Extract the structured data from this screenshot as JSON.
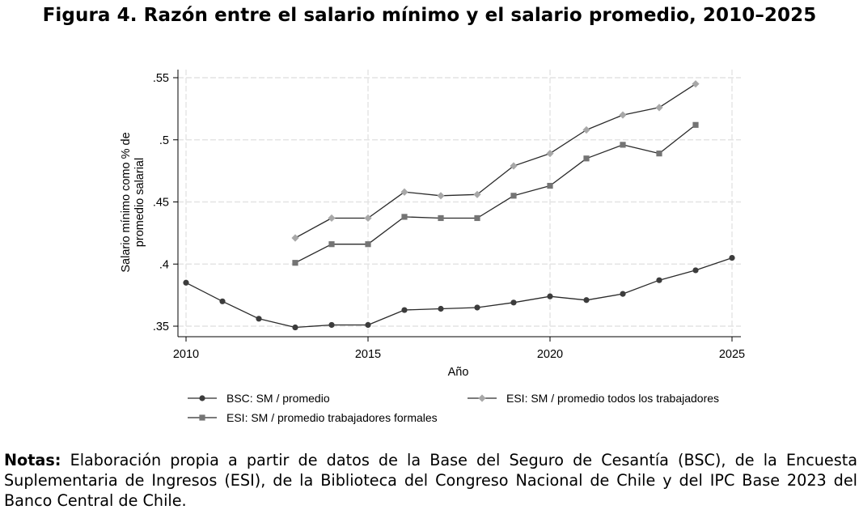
{
  "figure_title": "Figura 4. Razón entre el salario mínimo y el salario promedio, 2010–2025",
  "notes": {
    "label": "Notas:",
    "text": "Elaboración propia a partir de datos de la Base del Seguro de Cesantía (BSC), de la Encuesta Suplementaria de Ingresos (ESI), de la Biblioteca del Congreso Nacional de Chile y del IPC Base 2023 del Banco Central de Chile."
  },
  "chart_data": {
    "type": "line",
    "title": "Figura 4. Razón entre el salario mínimo y el salario promedio, 2010–2025",
    "xlabel": "Año",
    "ylabel": [
      "Salario mínimo como % de",
      "promedio salarial"
    ],
    "xlim": [
      2010,
      2025
    ],
    "ylim": [
      0.35,
      0.55
    ],
    "x_ticks": [
      2010,
      2015,
      2020,
      2025
    ],
    "x_tick_labels": [
      "2010",
      "2015",
      "2020",
      "2025"
    ],
    "y_ticks": [
      0.35,
      0.4,
      0.45,
      0.5,
      0.55
    ],
    "y_tick_labels": [
      ".35",
      ".4",
      ".45",
      ".5",
      ".55"
    ],
    "grid": true,
    "legend_position": "bottom",
    "series": [
      {
        "name": "BSC: SM / promedio",
        "marker": "circle",
        "color": "#3c3c3c",
        "x": [
          2010,
          2011,
          2012,
          2013,
          2014,
          2015,
          2016,
          2017,
          2018,
          2019,
          2020,
          2021,
          2022,
          2023,
          2024,
          2025
        ],
        "values": [
          0.385,
          0.37,
          0.356,
          0.349,
          0.351,
          0.351,
          0.363,
          0.364,
          0.365,
          0.369,
          0.374,
          0.371,
          0.376,
          0.387,
          0.395,
          0.405
        ]
      },
      {
        "name": "ESI: SM / promedio todos los trabajadores",
        "marker": "diamond",
        "color": "#a8a8a8",
        "x": [
          2013,
          2014,
          2015,
          2016,
          2017,
          2018,
          2019,
          2020,
          2021,
          2022,
          2023,
          2024
        ],
        "values": [
          0.421,
          0.437,
          0.437,
          0.458,
          0.455,
          0.456,
          0.479,
          0.489,
          0.508,
          0.52,
          0.526,
          0.545
        ]
      },
      {
        "name": "ESI: SM / promedio trabajadores formales",
        "marker": "square",
        "color": "#747474",
        "x": [
          2013,
          2014,
          2015,
          2016,
          2017,
          2018,
          2019,
          2020,
          2021,
          2022,
          2023,
          2024
        ],
        "values": [
          0.401,
          0.416,
          0.416,
          0.438,
          0.437,
          0.437,
          0.455,
          0.463,
          0.485,
          0.496,
          0.489,
          0.512
        ]
      }
    ]
  }
}
